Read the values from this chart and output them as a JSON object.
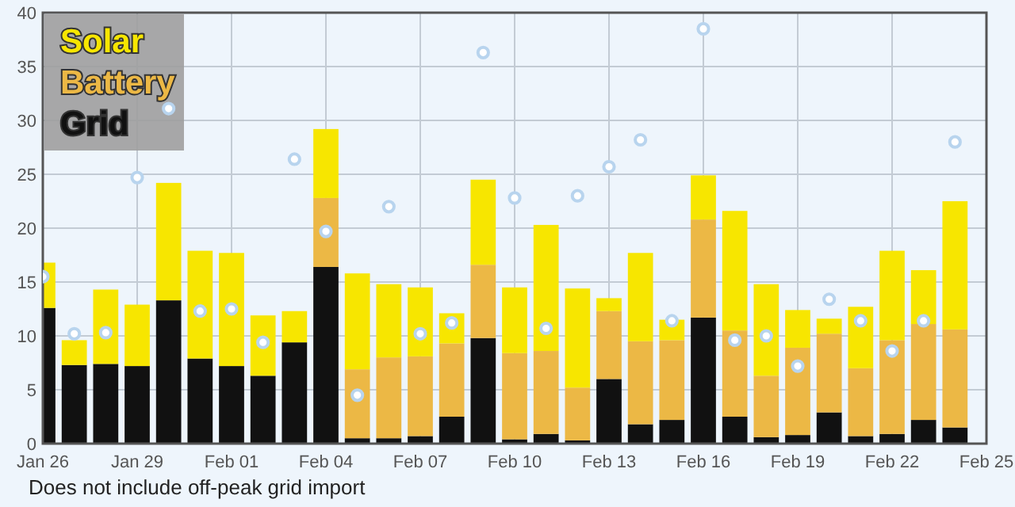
{
  "chart_data": {
    "type": "bar",
    "stacked": true,
    "x": [
      "--01-26",
      "--01-27",
      "--01-28",
      "--01-29",
      "--01-30",
      "--01-31",
      "--02-01",
      "--02-02",
      "--02-03",
      "--02-04",
      "--02-05",
      "--02-06",
      "--02-07",
      "--02-08",
      "--02-09",
      "--02-10",
      "--02-11",
      "--02-12",
      "--02-13",
      "--02-14",
      "--02-15",
      "--02-16",
      "--02-17",
      "--02-18",
      "--02-19",
      "--02-20",
      "--02-21",
      "--02-22",
      "--02-23",
      "--02-24"
    ],
    "series": [
      {
        "name": "Grid",
        "color": "#111111",
        "values": [
          12.6,
          7.3,
          7.4,
          7.2,
          13.3,
          7.9,
          7.2,
          6.3,
          9.4,
          16.4,
          0.5,
          0.5,
          0.7,
          2.5,
          9.8,
          0.4,
          0.9,
          0.3,
          6.0,
          1.8,
          2.2,
          11.7,
          2.5,
          0.6,
          0.8,
          2.9,
          0.7,
          0.9,
          2.2,
          1.5
        ]
      },
      {
        "name": "Battery",
        "color": "#ecb845",
        "values": [
          0,
          0,
          0,
          0,
          0,
          0,
          0,
          0,
          0,
          6.4,
          6.4,
          7.5,
          7.4,
          6.8,
          6.8,
          8.0,
          7.7,
          4.9,
          6.3,
          7.7,
          7.4,
          9.1,
          8.0,
          5.7,
          8.1,
          7.3,
          6.3,
          8.7,
          8.9,
          9.1
        ]
      },
      {
        "name": "Solar",
        "color": "#f7e600",
        "values": [
          4.2,
          2.3,
          6.9,
          5.7,
          10.9,
          10.0,
          10.5,
          5.6,
          2.9,
          6.4,
          8.9,
          6.8,
          6.4,
          2.8,
          7.9,
          6.1,
          11.7,
          9.2,
          1.2,
          8.2,
          1.9,
          4.1,
          11.1,
          8.5,
          3.5,
          1.4,
          5.7,
          8.3,
          5.0,
          11.9
        ]
      },
      {
        "type": "scatter",
        "color": "#b8d4ee",
        "values": [
          15.5,
          10.2,
          10.3,
          24.7,
          31.1,
          12.3,
          12.5,
          9.4,
          26.4,
          19.7,
          4.5,
          22.0,
          10.2,
          11.2,
          36.3,
          22.8,
          10.7,
          23.0,
          25.7,
          28.2,
          11.4,
          38.5,
          9.6,
          10.0,
          7.2,
          13.4,
          11.4,
          8.6,
          11.4,
          28.0
        ]
      }
    ],
    "xlim": [
      "--01-26",
      "--02-25"
    ],
    "xticks": [
      {
        "value": "--01-26",
        "label": "Jan 26"
      },
      {
        "value": "--01-29",
        "label": "Jan 29"
      },
      {
        "value": "--02-01",
        "label": "Feb 01"
      },
      {
        "value": "--02-04",
        "label": "Feb 04"
      },
      {
        "value": "--02-07",
        "label": "Feb 07"
      },
      {
        "value": "--02-10",
        "label": "Feb 10"
      },
      {
        "value": "--02-13",
        "label": "Feb 13"
      },
      {
        "value": "--02-16",
        "label": "Feb 16"
      },
      {
        "value": "--02-19",
        "label": "Feb 19"
      },
      {
        "value": "--02-22",
        "label": "Feb 22"
      },
      {
        "value": "--02-25",
        "label": "Feb 25"
      }
    ],
    "ylim": [
      0,
      40
    ],
    "yticks": [
      0,
      5,
      10,
      15,
      20,
      25,
      30,
      35,
      40
    ],
    "grid": true,
    "legend": "top left",
    "marker": "circle",
    "annotations": [
      "Does not include off-peak grid import"
    ]
  }
}
